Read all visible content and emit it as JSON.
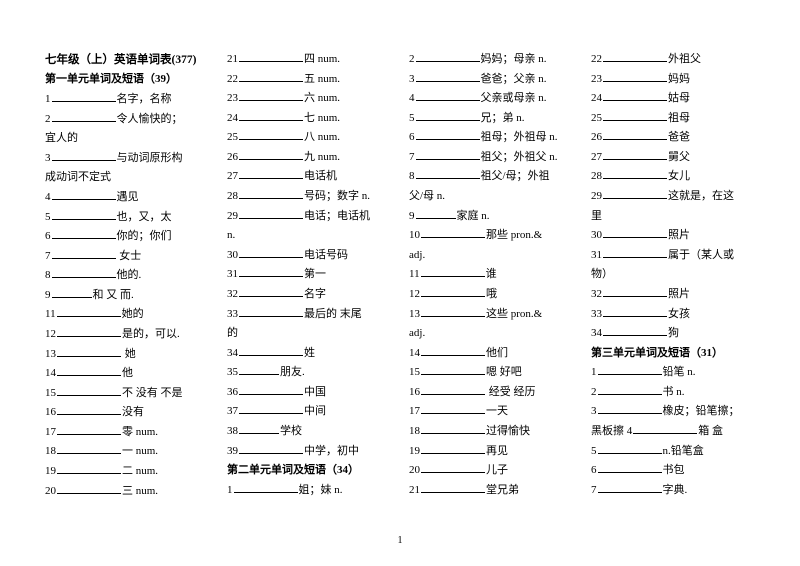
{
  "footer": "1",
  "col1": {
    "title": "七年级（上）英语单词表(377)",
    "subtitle": "第一单元单词及短语（39）",
    "items": [
      {
        "n": "1",
        "t": "名字，名称"
      },
      {
        "n": "2",
        "t": "令人愉快的；"
      },
      {
        "cont": "宜人的"
      },
      {
        "n": "3",
        "t": "与动词原形构"
      },
      {
        "cont": "成动词不定式"
      },
      {
        "n": "4",
        "t": "遇见"
      },
      {
        "n": "5",
        "t": "也，又，太"
      },
      {
        "n": "6",
        "t": "你的；你们"
      },
      {
        "n": "7",
        "t": " 女士"
      },
      {
        "n": "8",
        "t": "他的."
      },
      {
        "n": "9",
        "t": "和  又  而.",
        "short": true
      },
      {
        "n": "11",
        "t": "她的"
      },
      {
        "n": "12",
        "t": "是的，可以."
      },
      {
        "n": "13",
        "t": " 她"
      },
      {
        "n": "14",
        "t": "他"
      },
      {
        "n": "15",
        "t": "不  没有  不是"
      },
      {
        "n": "16",
        "t": "没有"
      },
      {
        "n": "17",
        "t": "零 num."
      },
      {
        "n": "18",
        "t": "一 num."
      },
      {
        "n": "19",
        "t": "二 num."
      },
      {
        "n": "20",
        "t": "三 num."
      }
    ]
  },
  "col2": {
    "items1": [
      {
        "n": "21",
        "t": "四 num."
      },
      {
        "n": "22",
        "t": "五 num."
      },
      {
        "n": "23",
        "t": "六 num."
      },
      {
        "n": "24",
        "t": "七 num."
      },
      {
        "n": "25",
        "t": "八 num."
      },
      {
        "n": "26",
        "t": "九 num."
      },
      {
        "n": "27",
        "t": "电话机"
      },
      {
        "n": "28",
        "t": "号码；数字 n."
      },
      {
        "n": "29",
        "t": "电话；电话机"
      },
      {
        "cont": "n."
      },
      {
        "n": "30",
        "t": "电话号码"
      },
      {
        "n": "31",
        "t": "第一"
      },
      {
        "n": "32",
        "t": "名字"
      },
      {
        "n": "33",
        "t": "最后的 末尾"
      },
      {
        "cont": "的"
      },
      {
        "n": "34",
        "t": "姓"
      },
      {
        "n": "35",
        "t": "朋友.",
        "short": true
      },
      {
        "n": "36",
        "t": "中国"
      },
      {
        "n": "37",
        "t": "中间"
      },
      {
        "n": "38",
        "t": "学校",
        "short": true
      },
      {
        "n": "39",
        "t": "中学，初中"
      }
    ],
    "subtitle": "第二单元单词及短语（34）",
    "items2": [
      {
        "n": "1",
        "t": "姐；妹 n."
      }
    ]
  },
  "col3": {
    "items": [
      {
        "n": "2",
        "t": "妈妈；母亲 n."
      },
      {
        "n": "3",
        "t": "爸爸；父亲 n."
      },
      {
        "n": "4",
        "t": "父亲或母亲 n."
      },
      {
        "n": "5",
        "t": "兄；弟 n."
      },
      {
        "n": "6",
        "t": "祖母；外祖母 n."
      },
      {
        "n": "7",
        "t": "祖父；外祖父 n."
      },
      {
        "n": "8",
        "t": "祖父/母；外祖"
      },
      {
        "cont": "父/母 n."
      },
      {
        "n": " 9",
        "t": "家庭 n.",
        "short": true
      },
      {
        "n": "10",
        "t": "那些 pron.&"
      },
      {
        "cont": "adj."
      },
      {
        "n": "11",
        "t": "谁"
      },
      {
        "n": "12",
        "t": "哦"
      },
      {
        "n": "13",
        "t": "这些 pron.&"
      },
      {
        "cont": "adj."
      },
      {
        "n": "14",
        "t": "他们"
      },
      {
        "n": "15",
        "t": "嗯 好吧"
      },
      {
        "n": "16",
        "t": " 经受 经历"
      },
      {
        "n": "17",
        "t": "一天"
      },
      {
        "n": "18",
        "t": "过得愉快"
      },
      {
        "n": "19",
        "t": "再见"
      },
      {
        "n": "20",
        "t": "儿子"
      },
      {
        "n": "21",
        "t": "堂兄弟"
      }
    ]
  },
  "col4": {
    "items1": [
      {
        "n": "22",
        "t": "外祖父"
      },
      {
        "n": "23",
        "t": "妈妈"
      },
      {
        "n": "24",
        "t": "姑母"
      },
      {
        "n": "25",
        "t": "祖母"
      },
      {
        "n": "26",
        "t": "爸爸"
      },
      {
        "n": "27",
        "t": "舅父"
      },
      {
        "n": "28",
        "t": "女儿"
      },
      {
        "n": "29",
        "t": "这就是，在这"
      },
      {
        "cont": "里"
      },
      {
        "n": "30",
        "t": "照片"
      },
      {
        "n": "31",
        "t": "属于（某人或"
      },
      {
        "cont": "物）"
      },
      {
        "n": "32",
        "t": "照片"
      },
      {
        "n": "33",
        "t": "女孩"
      },
      {
        "n": "34",
        "t": "狗"
      }
    ],
    "subtitle": "第三单元单词及短语（31）",
    "items2": [
      {
        "n": "1",
        "t": "铅笔 n."
      },
      {
        "n": "2",
        "t": "书 n."
      },
      {
        "n": "3",
        "t": "橡皮；铅笔擦；"
      },
      {
        "raw": "黑板擦 4",
        "t": "箱  盒"
      },
      {
        "n": "5",
        "t": "n.铅笔盒"
      },
      {
        "n": "6",
        "t": "书包"
      },
      {
        "n": "7",
        "t": "字典."
      }
    ]
  }
}
